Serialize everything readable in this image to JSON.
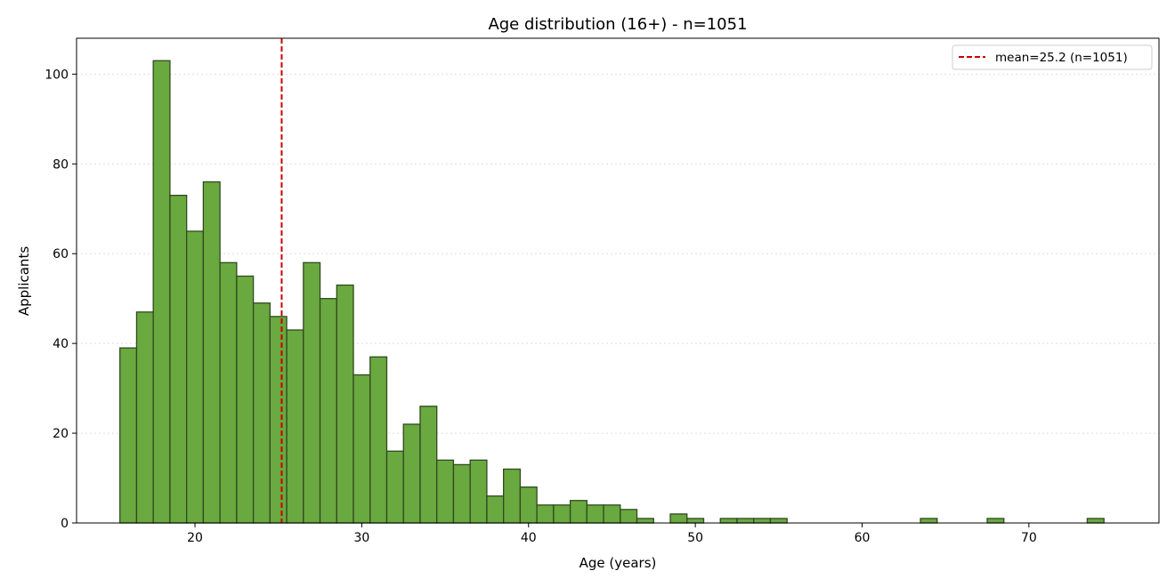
{
  "chart_data": {
    "type": "bar",
    "title": "Age distribution (16+) - n=1051",
    "xlabel": "Age (years)",
    "ylabel": "Applicants",
    "xlim": [
      12.9,
      77.8
    ],
    "ylim": [
      0,
      108
    ],
    "xticks": [
      20,
      30,
      40,
      50,
      60,
      70
    ],
    "yticks": [
      0,
      20,
      40,
      60,
      80,
      100
    ],
    "grid": "y-dotted",
    "bin_start": 15.5,
    "bin_width": 1.0,
    "values": [
      39,
      47,
      103,
      73,
      65,
      76,
      58,
      55,
      49,
      46,
      43,
      58,
      50,
      53,
      33,
      37,
      16,
      22,
      26,
      14,
      13,
      14,
      6,
      12,
      8,
      4,
      4,
      5,
      4,
      4,
      3,
      1,
      0,
      2,
      1,
      0,
      1,
      1,
      1,
      1,
      0,
      0,
      0,
      0,
      0,
      0,
      0,
      0,
      1,
      0,
      0,
      0,
      1,
      0,
      0,
      0,
      0,
      0,
      1
    ],
    "mean_line": {
      "value": 25.2,
      "label": "mean=25.2  (n=1051)",
      "color": "#cc0000"
    },
    "bar_color": "#6aa840",
    "bar_edge_color": "#2f4a1f",
    "legend_placement": "top-right"
  }
}
